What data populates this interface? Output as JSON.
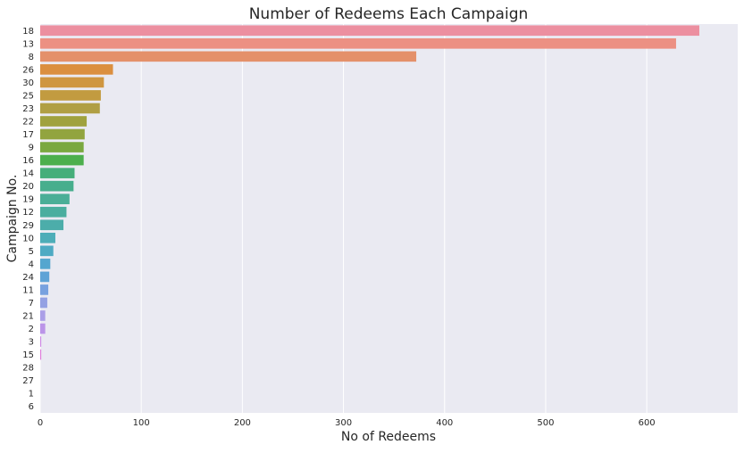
{
  "chart_data": {
    "type": "bar",
    "orientation": "horizontal",
    "title": "Number of Redeems Each Campaign",
    "xlabel": "No of Redeems",
    "ylabel": "Campaign No.",
    "xlim": [
      0,
      690
    ],
    "xticks": [
      0,
      100,
      200,
      300,
      400,
      500,
      600
    ],
    "grid": true,
    "categories": [
      "18",
      "13",
      "8",
      "26",
      "30",
      "25",
      "23",
      "22",
      "17",
      "9",
      "16",
      "14",
      "20",
      "19",
      "12",
      "29",
      "10",
      "5",
      "4",
      "24",
      "11",
      "7",
      "21",
      "2",
      "3",
      "15",
      "28",
      "27",
      "1",
      "6"
    ],
    "values": [
      652,
      629,
      372,
      72,
      63,
      60,
      59,
      46,
      44,
      43,
      43,
      34,
      33,
      29,
      26,
      23,
      15,
      13,
      10,
      9,
      8,
      7,
      5,
      5,
      1,
      1,
      0,
      0,
      0,
      0
    ],
    "colors": [
      "#ec8fa0",
      "#ec9083",
      "#e4906a",
      "#db8f3f",
      "#cf9640",
      "#c29b40",
      "#b09f44",
      "#a0a23e",
      "#92a43f",
      "#7aa83f",
      "#4caf4d",
      "#45ae7a",
      "#47ae8d",
      "#4aae97",
      "#4aae9f",
      "#4cadaa",
      "#4dadb8",
      "#4eaac3",
      "#54a6cf",
      "#60a3d6",
      "#78a1df",
      "#94a1e3",
      "#aa9ee7",
      "#bb94e8",
      "#cf88e4",
      "#e07cdb",
      "#e77fcf",
      "#ea83c4",
      "#eb87b9",
      "#ec8aad"
    ]
  }
}
